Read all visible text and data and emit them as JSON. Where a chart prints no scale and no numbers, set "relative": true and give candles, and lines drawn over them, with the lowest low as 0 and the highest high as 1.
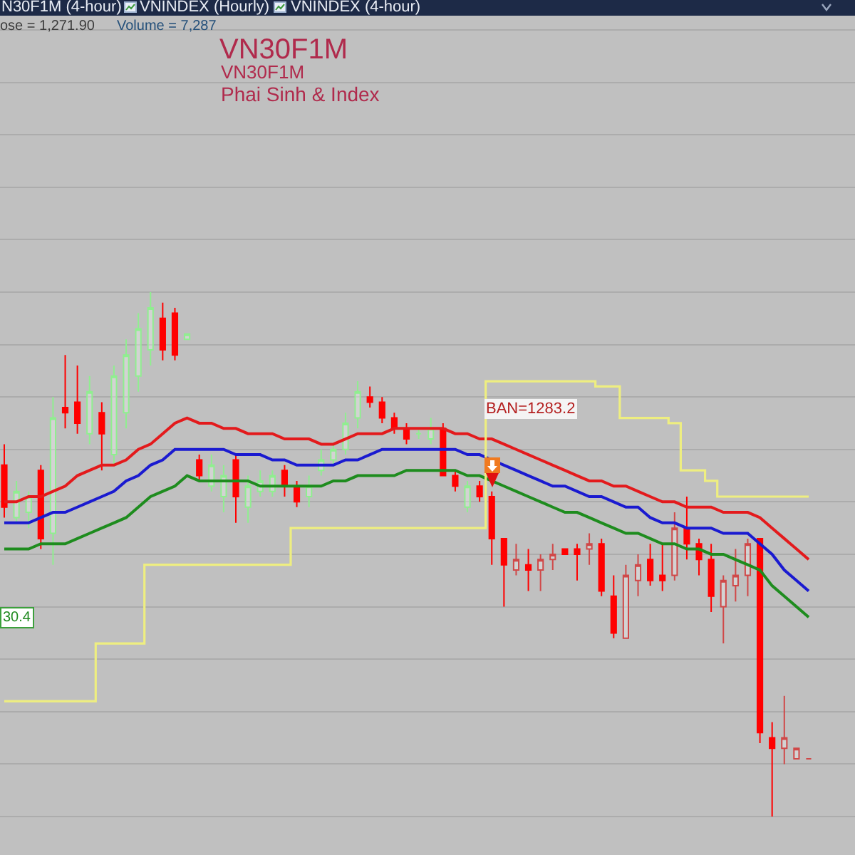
{
  "chart_data": {
    "type": "candlestick",
    "title": "VN30F1M",
    "subtitle": "VN30F1M",
    "annotations": [
      "N30F1M (4-hour)",
      "VNINDEX (Hourly)",
      "VNINDEX (4-hour)",
      "ose = 1,271.90",
      "Volume = 7,287",
      "Phai Sinh & Index",
      "BAN=1283.2",
      "30.4"
    ],
    "relative": true,
    "grid": "y",
    "categories": [
      null,
      null,
      null,
      null,
      null,
      null,
      null,
      null,
      null,
      null,
      null,
      null,
      null,
      null,
      null,
      null,
      null,
      null,
      null,
      null,
      null,
      null,
      null,
      null,
      null,
      null,
      null,
      null,
      null,
      null,
      null,
      null,
      null,
      null,
      null,
      null,
      null,
      null,
      null,
      null,
      null,
      null,
      null,
      null,
      null,
      null,
      null,
      null,
      null,
      null,
      null,
      null,
      null,
      null,
      null,
      null,
      null,
      null,
      null,
      null,
      null,
      null,
      null,
      null,
      null,
      null,
      null
    ],
    "ohlc": [
      [
        0.67,
        0.71,
        0.57,
        0.59
      ],
      [
        0.57,
        0.64,
        0.56,
        0.62
      ],
      [
        0.58,
        0.62,
        0.55,
        0.61
      ],
      [
        0.66,
        0.67,
        0.51,
        0.53
      ],
      [
        0.54,
        0.8,
        0.48,
        0.76
      ],
      [
        0.78,
        0.88,
        0.74,
        0.77
      ],
      [
        0.79,
        0.86,
        0.73,
        0.75
      ],
      [
        0.73,
        0.84,
        0.71,
        0.81
      ],
      [
        0.77,
        0.79,
        0.66,
        0.73
      ],
      [
        0.69,
        0.86,
        0.67,
        0.84
      ],
      [
        0.77,
        0.91,
        0.74,
        0.88
      ],
      [
        0.84,
        0.96,
        0.81,
        0.93
      ],
      [
        0.89,
        1.0,
        0.86,
        0.97
      ],
      [
        0.95,
        0.98,
        0.87,
        0.89
      ],
      [
        0.96,
        0.97,
        0.87,
        0.88
      ],
      [
        0.91,
        0.92,
        0.91,
        0.92
      ],
      [
        0.68,
        0.69,
        0.64,
        0.65
      ],
      [
        0.63,
        0.69,
        0.62,
        0.67
      ],
      [
        0.61,
        0.67,
        0.58,
        0.65
      ],
      [
        0.68,
        0.69,
        0.56,
        0.61
      ],
      [
        0.59,
        0.65,
        0.56,
        0.63
      ],
      [
        0.62,
        0.66,
        0.61,
        0.64
      ],
      [
        0.62,
        0.66,
        0.61,
        0.65
      ],
      [
        0.66,
        0.67,
        0.61,
        0.63
      ],
      [
        0.63,
        0.64,
        0.59,
        0.6
      ],
      [
        0.61,
        0.65,
        0.59,
        0.63
      ],
      [
        0.66,
        0.7,
        0.65,
        0.68
      ],
      [
        0.68,
        0.71,
        0.67,
        0.7
      ],
      [
        0.7,
        0.77,
        0.69,
        0.75
      ],
      [
        0.76,
        0.83,
        0.74,
        0.81
      ],
      [
        0.8,
        0.82,
        0.78,
        0.79
      ],
      [
        0.79,
        0.8,
        0.75,
        0.76
      ],
      [
        0.76,
        0.77,
        0.73,
        0.74
      ],
      [
        0.74,
        0.75,
        0.71,
        0.72
      ],
      [
        0.73,
        0.74,
        0.72,
        0.73
      ],
      [
        0.72,
        0.76,
        0.71,
        0.74
      ],
      [
        0.74,
        0.75,
        0.65,
        0.65
      ],
      [
        0.65,
        0.66,
        0.62,
        0.63
      ],
      [
        0.59,
        0.64,
        0.58,
        0.63
      ],
      [
        0.63,
        0.64,
        0.6,
        0.61
      ],
      [
        0.61,
        0.62,
        0.48,
        0.53
      ],
      [
        0.53,
        0.53,
        0.4,
        0.48
      ],
      [
        0.47,
        0.52,
        0.46,
        0.49
      ],
      [
        0.48,
        0.51,
        0.43,
        0.47
      ],
      [
        0.47,
        0.5,
        0.43,
        0.49
      ],
      [
        0.49,
        0.52,
        0.47,
        0.5
      ],
      [
        0.51,
        0.51,
        0.5,
        0.5
      ],
      [
        0.51,
        0.52,
        0.45,
        0.5
      ],
      [
        0.51,
        0.54,
        0.48,
        0.52
      ],
      [
        0.52,
        0.53,
        0.42,
        0.43
      ],
      [
        0.42,
        0.46,
        0.34,
        0.35
      ],
      [
        0.34,
        0.48,
        0.34,
        0.46
      ],
      [
        0.45,
        0.5,
        0.42,
        0.48
      ],
      [
        0.49,
        0.52,
        0.44,
        0.45
      ],
      [
        0.46,
        0.52,
        0.43,
        0.45
      ],
      [
        0.46,
        0.58,
        0.45,
        0.55
      ],
      [
        0.55,
        0.61,
        0.49,
        0.52
      ],
      [
        0.52,
        0.53,
        0.46,
        0.49
      ],
      [
        0.49,
        0.52,
        0.39,
        0.42
      ],
      [
        0.4,
        0.46,
        0.33,
        0.45
      ],
      [
        0.44,
        0.51,
        0.41,
        0.46
      ],
      [
        0.46,
        0.53,
        0.42,
        0.52
      ],
      [
        0.53,
        0.53,
        0.14,
        0.16
      ],
      [
        0.15,
        0.18,
        0.0,
        0.13
      ],
      [
        0.13,
        0.23,
        0.1,
        0.15
      ],
      [
        0.11,
        0.13,
        0.11,
        0.13
      ],
      [
        0.11,
        0.11,
        0.11,
        0.11
      ]
    ],
    "colors": [
      "#ff0000",
      "#90ee90",
      "#90ee90",
      "#ff0000",
      "#90ee90",
      "#ff0000",
      "#ff0000",
      "#90ee90",
      "#ff0000",
      "#90ee90",
      "#90ee90",
      "#90ee90",
      "#90ee90",
      "#ff0000",
      "#ff0000",
      "#90ee90",
      "#ff0000",
      "#90ee90",
      "#90ee90",
      "#ff0000",
      "#90ee90",
      "#90ee90",
      "#90ee90",
      "#ff0000",
      "#ff0000",
      "#90ee90",
      "#90ee90",
      "#90ee90",
      "#90ee90",
      "#90ee90",
      "#ff0000",
      "#ff0000",
      "#ff0000",
      "#ff0000",
      "#90ee90",
      "#90ee90",
      "#ff0000",
      "#ff0000",
      "#90ee90",
      "#ff0000",
      "#ff0000",
      "#ff0000",
      "#d04848",
      "#ff0000",
      "#d04848",
      "#d04848",
      "#ff0000",
      "#ff0000",
      "#d04848",
      "#ff0000",
      "#ff0000",
      "#d04848",
      "#d04848",
      "#ff0000",
      "#ff0000",
      "#d04848",
      "#ff0000",
      "#ff0000",
      "#ff0000",
      "#d04848",
      "#d04848",
      "#d04848",
      "#ff0000",
      "#ff0000",
      "#d04848",
      "#d04848",
      "#d04848"
    ],
    "series": [
      {
        "type": "line",
        "color": "#e31a1c",
        "values": [
          0.6,
          0.6,
          0.61,
          0.61,
          0.62,
          0.63,
          0.65,
          0.66,
          0.67,
          0.67,
          0.68,
          0.7,
          0.71,
          0.73,
          0.75,
          0.76,
          0.75,
          0.75,
          0.74,
          0.74,
          0.73,
          0.73,
          0.73,
          0.72,
          0.72,
          0.72,
          0.71,
          0.71,
          0.72,
          0.73,
          0.73,
          0.73,
          0.74,
          0.74,
          0.74,
          0.74,
          0.74,
          0.73,
          0.73,
          0.72,
          0.72,
          0.71,
          0.7,
          0.69,
          0.68,
          0.67,
          0.66,
          0.65,
          0.64,
          0.64,
          0.63,
          0.63,
          0.62,
          0.61,
          0.6,
          0.6,
          0.59,
          0.59,
          0.59,
          0.58,
          0.58,
          0.58,
          0.57,
          0.55,
          0.53,
          0.51,
          0.49
        ]
      },
      {
        "type": "line",
        "color": "#1a1ad0",
        "values": [
          0.56,
          0.56,
          0.56,
          0.57,
          0.58,
          0.58,
          0.59,
          0.6,
          0.61,
          0.62,
          0.64,
          0.65,
          0.67,
          0.68,
          0.7,
          0.7,
          0.7,
          0.7,
          0.7,
          0.69,
          0.69,
          0.69,
          0.68,
          0.68,
          0.67,
          0.67,
          0.67,
          0.67,
          0.68,
          0.68,
          0.69,
          0.7,
          0.7,
          0.7,
          0.7,
          0.7,
          0.7,
          0.7,
          0.69,
          0.69,
          0.68,
          0.67,
          0.66,
          0.65,
          0.64,
          0.63,
          0.63,
          0.62,
          0.61,
          0.61,
          0.6,
          0.59,
          0.59,
          0.57,
          0.56,
          0.56,
          0.55,
          0.55,
          0.55,
          0.54,
          0.54,
          0.54,
          0.52,
          0.5,
          0.47,
          0.45,
          0.43
        ]
      },
      {
        "type": "line",
        "color": "#1e8c1e",
        "values": [
          0.51,
          0.51,
          0.51,
          0.52,
          0.52,
          0.52,
          0.53,
          0.54,
          0.55,
          0.56,
          0.57,
          0.59,
          0.61,
          0.62,
          0.63,
          0.65,
          0.64,
          0.64,
          0.64,
          0.64,
          0.64,
          0.63,
          0.63,
          0.63,
          0.63,
          0.63,
          0.63,
          0.64,
          0.64,
          0.65,
          0.65,
          0.65,
          0.65,
          0.66,
          0.66,
          0.66,
          0.66,
          0.66,
          0.65,
          0.65,
          0.64,
          0.63,
          0.62,
          0.61,
          0.6,
          0.59,
          0.58,
          0.58,
          0.57,
          0.56,
          0.55,
          0.54,
          0.54,
          0.53,
          0.52,
          0.52,
          0.51,
          0.51,
          0.5,
          0.5,
          0.49,
          0.48,
          0.47,
          0.44,
          0.42,
          0.4,
          0.38
        ]
      },
      {
        "type": "step",
        "color": "#eeee80",
        "values": [
          0.22,
          0.22,
          0.22,
          0.22,
          0.22,
          0.22,
          0.22,
          0.22,
          0.33,
          0.33,
          0.33,
          0.33,
          0.48,
          0.48,
          0.48,
          0.48,
          0.48,
          0.48,
          0.48,
          0.48,
          0.48,
          0.48,
          0.48,
          0.48,
          0.55,
          0.55,
          0.55,
          0.55,
          0.55,
          0.55,
          0.55,
          0.55,
          0.55,
          0.55,
          0.55,
          0.55,
          0.55,
          0.55,
          0.55,
          0.55,
          0.83,
          0.83,
          0.83,
          0.83,
          0.83,
          0.83,
          0.83,
          0.83,
          0.83,
          0.82,
          0.82,
          0.76,
          0.76,
          0.76,
          0.76,
          0.75,
          0.66,
          0.66,
          0.64,
          0.61,
          0.61,
          0.61,
          0.61,
          0.61,
          0.61,
          0.61,
          0.61
        ]
      }
    ]
  }
}
